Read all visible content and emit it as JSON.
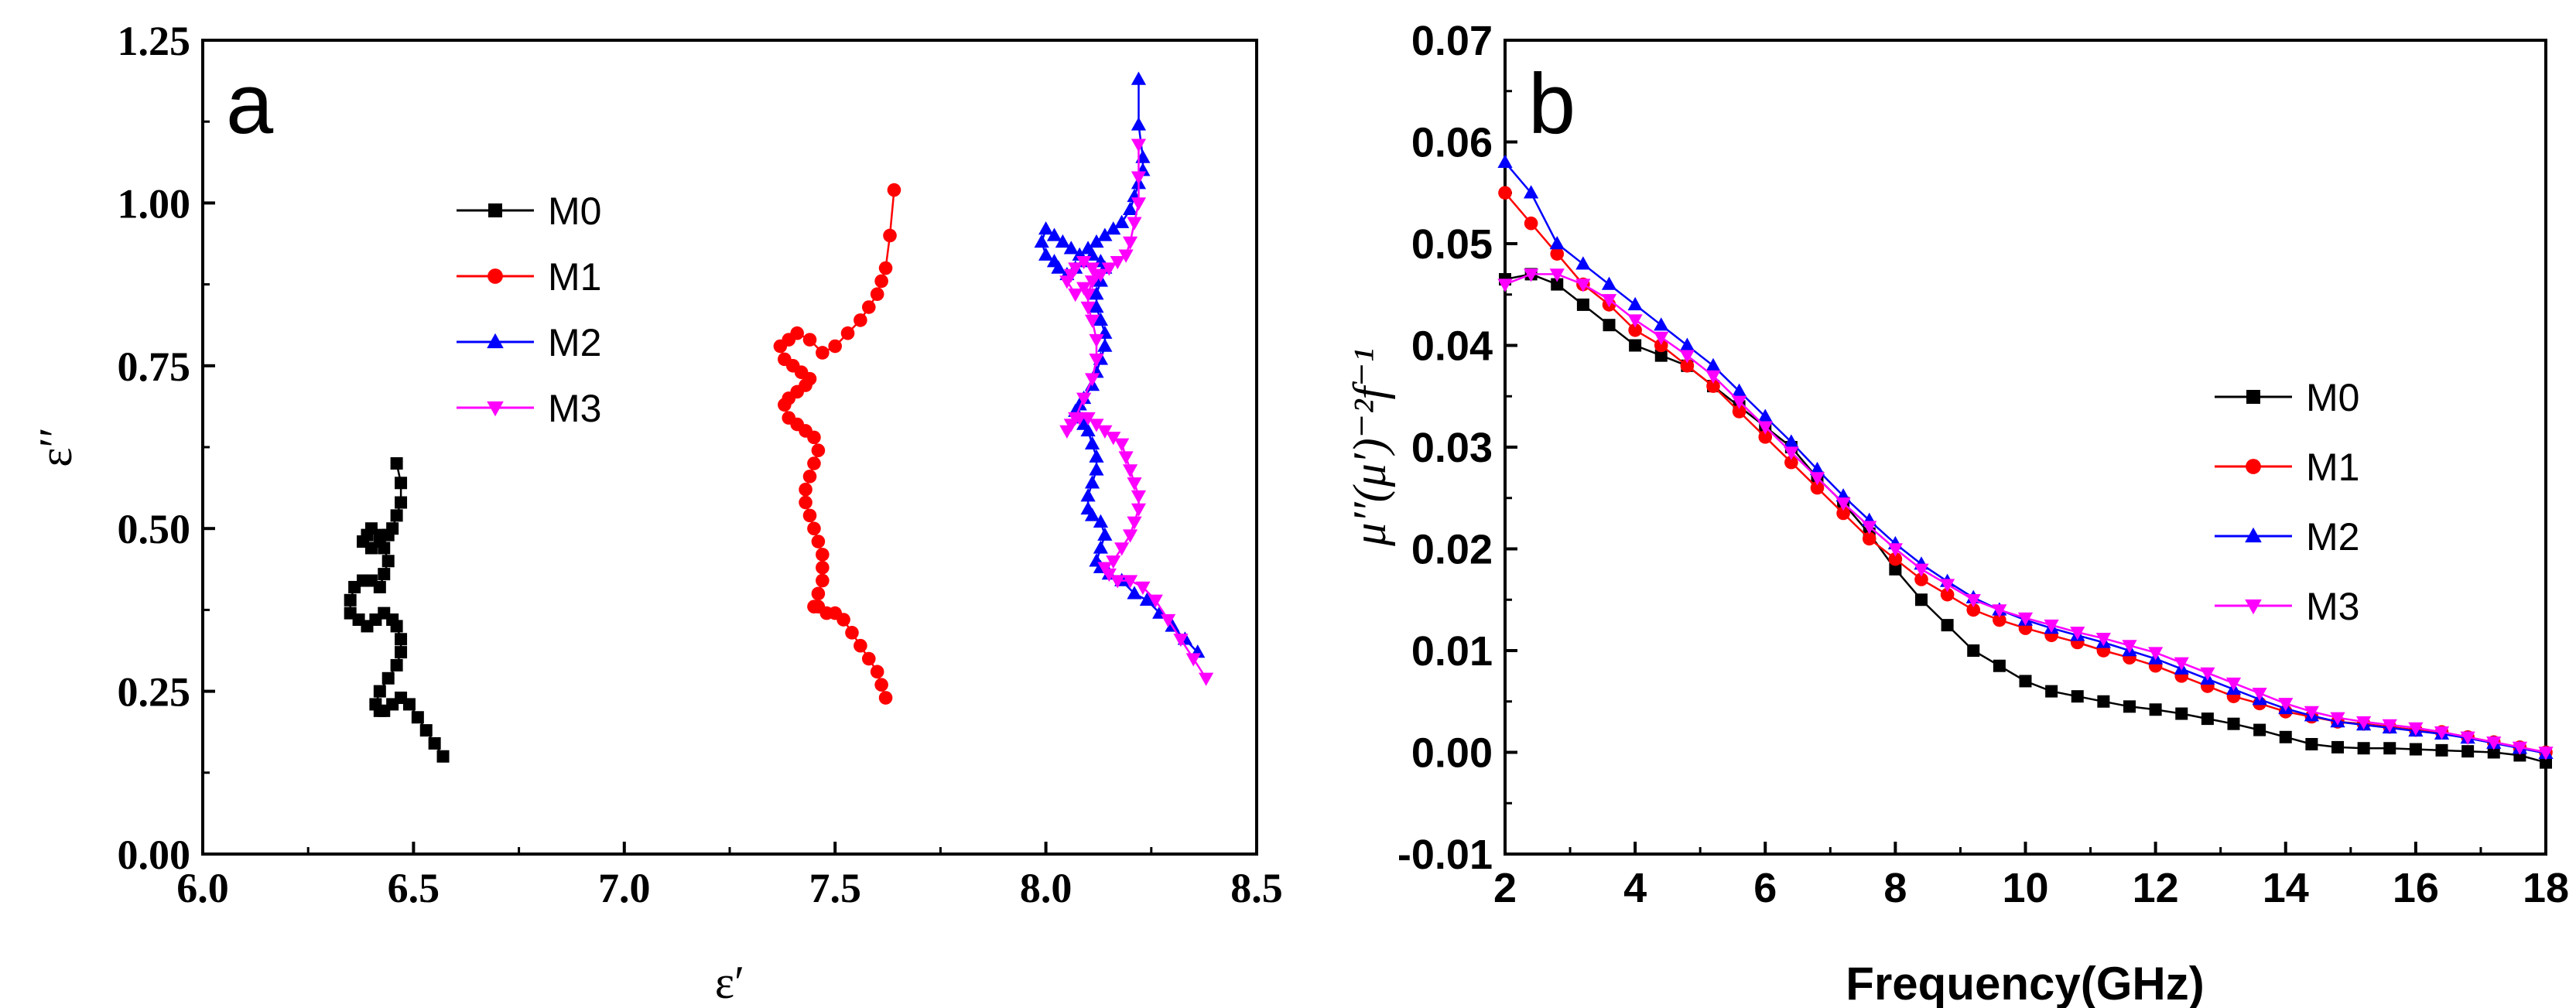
{
  "chart_data": [
    {
      "type": "line",
      "panel_label": "a",
      "xlabel": "ε′",
      "ylabel": "ε′′",
      "xlim": [
        6.0,
        8.5
      ],
      "ylim": [
        0.0,
        1.25
      ],
      "x_ticks": [
        "6.0",
        "6.5",
        "7.0",
        "7.5",
        "8.0",
        "8.5"
      ],
      "y_ticks": [
        "0.00",
        "0.25",
        "0.50",
        "0.75",
        "1.00",
        "1.25"
      ],
      "legend_position": "upper-center",
      "series": [
        {
          "name": "M0",
          "color": "#000000",
          "marker": "square",
          "x": [
            6.57,
            6.55,
            6.53,
            6.51,
            6.49,
            6.47,
            6.45,
            6.43,
            6.42,
            6.41,
            6.42,
            6.44,
            6.46,
            6.47,
            6.47,
            6.46,
            6.45,
            6.43,
            6.41,
            6.39,
            6.37,
            6.35,
            6.35,
            6.36,
            6.38,
            6.4,
            6.42,
            6.43,
            6.44,
            6.43,
            6.42,
            6.4,
            6.39,
            6.38,
            6.4,
            6.42,
            6.44,
            6.45,
            6.46,
            6.47,
            6.47,
            6.46
          ],
          "y": [
            0.15,
            0.17,
            0.19,
            0.21,
            0.23,
            0.24,
            0.23,
            0.22,
            0.22,
            0.23,
            0.25,
            0.27,
            0.29,
            0.31,
            0.33,
            0.35,
            0.36,
            0.37,
            0.36,
            0.35,
            0.36,
            0.37,
            0.39,
            0.41,
            0.42,
            0.42,
            0.41,
            0.43,
            0.45,
            0.47,
            0.49,
            0.5,
            0.49,
            0.48,
            0.47,
            0.48,
            0.49,
            0.5,
            0.52,
            0.54,
            0.57,
            0.6
          ]
        },
        {
          "name": "M1",
          "color": "#ff0000",
          "marker": "circle",
          "x": [
            7.62,
            7.61,
            7.6,
            7.58,
            7.56,
            7.54,
            7.52,
            7.5,
            7.48,
            7.46,
            7.45,
            7.46,
            7.47,
            7.47,
            7.47,
            7.46,
            7.45,
            7.44,
            7.43,
            7.43,
            7.44,
            7.45,
            7.46,
            7.45,
            7.43,
            7.41,
            7.39,
            7.38,
            7.39,
            7.41,
            7.43,
            7.44,
            7.42,
            7.4,
            7.38,
            7.37,
            7.39,
            7.41,
            7.44,
            7.47,
            7.5,
            7.53,
            7.56,
            7.58,
            7.6,
            7.61,
            7.62,
            7.63,
            7.64
          ],
          "y": [
            0.24,
            0.26,
            0.28,
            0.3,
            0.32,
            0.34,
            0.36,
            0.37,
            0.37,
            0.38,
            0.38,
            0.4,
            0.42,
            0.44,
            0.46,
            0.48,
            0.5,
            0.52,
            0.54,
            0.56,
            0.58,
            0.6,
            0.62,
            0.64,
            0.65,
            0.66,
            0.67,
            0.69,
            0.7,
            0.71,
            0.72,
            0.73,
            0.74,
            0.75,
            0.76,
            0.78,
            0.79,
            0.8,
            0.79,
            0.77,
            0.78,
            0.8,
            0.82,
            0.84,
            0.86,
            0.88,
            0.9,
            0.95,
            1.02
          ]
        },
        {
          "name": "M2",
          "color": "#0000ff",
          "marker": "triangle-up",
          "x": [
            8.36,
            8.33,
            8.3,
            8.27,
            8.24,
            8.21,
            8.18,
            8.15,
            8.13,
            8.12,
            8.13,
            8.14,
            8.13,
            8.11,
            8.1,
            8.1,
            8.11,
            8.12,
            8.12,
            8.11,
            8.1,
            8.09,
            8.08,
            8.07,
            8.08,
            8.09,
            8.11,
            8.12,
            8.13,
            8.14,
            8.14,
            8.13,
            8.12,
            8.12,
            8.13,
            8.14,
            8.13,
            8.11,
            8.09,
            8.07,
            8.05,
            8.03,
            8.02,
            8.0,
            7.99,
            8.0,
            8.02,
            8.04,
            8.06,
            8.08,
            8.1,
            8.12,
            8.14,
            8.16,
            8.18,
            8.2,
            8.21,
            8.22,
            8.23,
            8.23,
            8.22,
            8.22
          ],
          "y": [
            0.31,
            0.33,
            0.35,
            0.37,
            0.39,
            0.4,
            0.42,
            0.43,
            0.44,
            0.45,
            0.47,
            0.49,
            0.51,
            0.52,
            0.53,
            0.55,
            0.57,
            0.59,
            0.61,
            0.63,
            0.65,
            0.66,
            0.67,
            0.68,
            0.69,
            0.7,
            0.72,
            0.74,
            0.76,
            0.78,
            0.8,
            0.82,
            0.84,
            0.86,
            0.88,
            0.9,
            0.91,
            0.92,
            0.91,
            0.9,
            0.89,
            0.9,
            0.91,
            0.92,
            0.94,
            0.96,
            0.95,
            0.94,
            0.93,
            0.92,
            0.93,
            0.94,
            0.95,
            0.96,
            0.97,
            0.99,
            1.01,
            1.03,
            1.05,
            1.07,
            1.12,
            1.19
          ]
        },
        {
          "name": "M3",
          "color": "#ff00ff",
          "marker": "triangle-down",
          "x": [
            8.38,
            8.35,
            8.32,
            8.29,
            8.26,
            8.23,
            8.2,
            8.17,
            8.15,
            8.14,
            8.16,
            8.18,
            8.2,
            8.21,
            8.22,
            8.22,
            8.21,
            8.2,
            8.19,
            8.18,
            8.16,
            8.14,
            8.12,
            8.1,
            8.08,
            8.06,
            8.05,
            8.07,
            8.09,
            8.11,
            8.12,
            8.12,
            8.11,
            8.1,
            8.1,
            8.11,
            8.12,
            8.11,
            8.09,
            8.07,
            8.06,
            8.05,
            8.07,
            8.09,
            8.11,
            8.13,
            8.15,
            8.17,
            8.19,
            8.2,
            8.21,
            8.22,
            8.22,
            8.22
          ],
          "y": [
            0.27,
            0.3,
            0.33,
            0.36,
            0.39,
            0.41,
            0.42,
            0.42,
            0.43,
            0.44,
            0.45,
            0.47,
            0.49,
            0.51,
            0.53,
            0.55,
            0.57,
            0.59,
            0.61,
            0.63,
            0.64,
            0.65,
            0.66,
            0.67,
            0.67,
            0.66,
            0.65,
            0.67,
            0.7,
            0.73,
            0.76,
            0.79,
            0.82,
            0.84,
            0.86,
            0.88,
            0.89,
            0.9,
            0.91,
            0.9,
            0.89,
            0.88,
            0.86,
            0.87,
            0.88,
            0.89,
            0.9,
            0.91,
            0.92,
            0.94,
            0.97,
            1.0,
            1.04,
            1.09
          ]
        }
      ]
    },
    {
      "type": "line",
      "panel_label": "b",
      "xlabel": "Frequency(GHz)",
      "ylabel": "μ′′(μ′)⁻²f⁻¹",
      "xlim": [
        2,
        18
      ],
      "ylim": [
        -0.01,
        0.07
      ],
      "x_ticks": [
        "2",
        "4",
        "6",
        "8",
        "10",
        "12",
        "14",
        "16",
        "18"
      ],
      "y_ticks": [
        "-0.01",
        "0.00",
        "0.01",
        "0.02",
        "0.03",
        "0.04",
        "0.05",
        "0.06",
        "0.07"
      ],
      "legend_position": "right-center",
      "x": [
        2.0,
        2.4,
        2.8,
        3.2,
        3.6,
        4.0,
        4.4,
        4.8,
        5.2,
        5.6,
        6.0,
        6.4,
        6.8,
        7.2,
        7.6,
        8.0,
        8.4,
        8.8,
        9.2,
        9.6,
        10.0,
        10.4,
        10.8,
        11.2,
        11.6,
        12.0,
        12.4,
        12.8,
        13.2,
        13.6,
        14.0,
        14.4,
        14.8,
        15.2,
        15.6,
        16.0,
        16.4,
        16.8,
        17.2,
        17.6,
        18.0
      ],
      "series": [
        {
          "name": "M0",
          "color": "#000000",
          "marker": "square",
          "values": [
            0.0465,
            0.047,
            0.046,
            0.044,
            0.042,
            0.04,
            0.039,
            0.038,
            0.036,
            0.034,
            0.032,
            0.03,
            0.027,
            0.0245,
            0.0215,
            0.018,
            0.015,
            0.0125,
            0.01,
            0.0085,
            0.007,
            0.006,
            0.0055,
            0.005,
            0.0045,
            0.0042,
            0.0038,
            0.0033,
            0.0028,
            0.0022,
            0.0015,
            0.0008,
            0.0005,
            0.0004,
            0.0004,
            0.0003,
            0.0002,
            0.0001,
            0.0,
            -0.0003,
            -0.001
          ]
        },
        {
          "name": "M1",
          "color": "#ff0000",
          "marker": "circle",
          "values": [
            0.055,
            0.052,
            0.049,
            0.046,
            0.044,
            0.0415,
            0.04,
            0.038,
            0.036,
            0.0335,
            0.031,
            0.0285,
            0.026,
            0.0235,
            0.021,
            0.019,
            0.017,
            0.0155,
            0.014,
            0.013,
            0.0122,
            0.0115,
            0.0108,
            0.01,
            0.0093,
            0.0085,
            0.0075,
            0.0065,
            0.0055,
            0.0048,
            0.004,
            0.0035,
            0.003,
            0.0028,
            0.0025,
            0.0022,
            0.002,
            0.0015,
            0.001,
            0.0005,
            0.0
          ]
        },
        {
          "name": "M2",
          "color": "#0000ff",
          "marker": "triangle-up",
          "values": [
            0.058,
            0.055,
            0.05,
            0.048,
            0.046,
            0.044,
            0.042,
            0.04,
            0.038,
            0.0355,
            0.033,
            0.0305,
            0.0278,
            0.0252,
            0.0228,
            0.0205,
            0.0185,
            0.0168,
            0.0152,
            0.014,
            0.013,
            0.0122,
            0.0115,
            0.0108,
            0.01,
            0.0092,
            0.0082,
            0.0072,
            0.0062,
            0.0052,
            0.0043,
            0.0036,
            0.003,
            0.0027,
            0.0024,
            0.0021,
            0.0018,
            0.0014,
            0.0009,
            0.0004,
            -0.0001
          ]
        },
        {
          "name": "M3",
          "color": "#ff00ff",
          "marker": "triangle-down",
          "values": [
            0.046,
            0.047,
            0.047,
            0.046,
            0.0445,
            0.0425,
            0.0408,
            0.039,
            0.037,
            0.0345,
            0.032,
            0.0295,
            0.027,
            0.0245,
            0.0222,
            0.02,
            0.018,
            0.0165,
            0.015,
            0.014,
            0.0132,
            0.0125,
            0.0118,
            0.0112,
            0.0105,
            0.0098,
            0.0088,
            0.0078,
            0.0068,
            0.0058,
            0.0048,
            0.004,
            0.0034,
            0.003,
            0.0027,
            0.0024,
            0.002,
            0.0015,
            0.001,
            0.0005,
            0.0
          ]
        }
      ]
    }
  ]
}
